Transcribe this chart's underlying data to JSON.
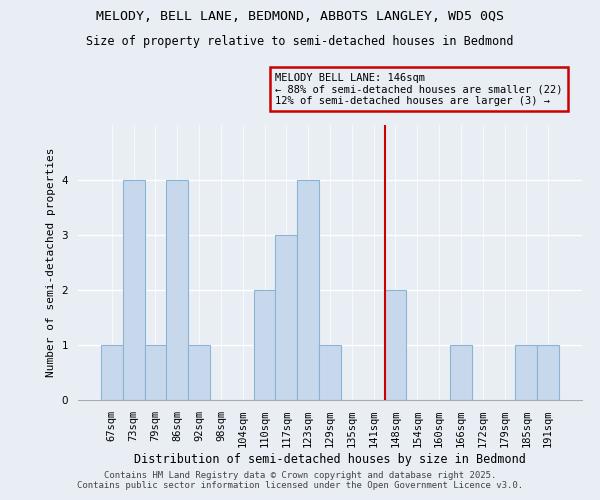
{
  "title1": "MELODY, BELL LANE, BEDMOND, ABBOTS LANGLEY, WD5 0QS",
  "title2": "Size of property relative to semi-detached houses in Bedmond",
  "xlabel": "Distribution of semi-detached houses by size in Bedmond",
  "ylabel": "Number of semi-detached properties",
  "categories": [
    "67sqm",
    "73sqm",
    "79sqm",
    "86sqm",
    "92sqm",
    "98sqm",
    "104sqm",
    "110sqm",
    "117sqm",
    "123sqm",
    "129sqm",
    "135sqm",
    "141sqm",
    "148sqm",
    "154sqm",
    "160sqm",
    "166sqm",
    "172sqm",
    "179sqm",
    "185sqm",
    "191sqm"
  ],
  "values": [
    1,
    4,
    1,
    4,
    1,
    0,
    0,
    2,
    3,
    4,
    1,
    0,
    0,
    2,
    0,
    0,
    1,
    0,
    0,
    1,
    1
  ],
  "bar_color": "#c8d8ec",
  "bar_edge_color": "#8ab4d4",
  "vline_x": 13.0,
  "vline_color": "#cc0000",
  "annotation_line1": "MELODY BELL LANE: 146sqm",
  "annotation_line2": "← 88% of semi-detached houses are smaller (22)",
  "annotation_line3": "12% of semi-detached houses are larger (3) →",
  "annotation_box_color": "#cc0000",
  "background_color": "#e8eef4",
  "ylim": [
    0,
    5
  ],
  "yticks": [
    0,
    1,
    2,
    3,
    4
  ],
  "footer_line1": "Contains HM Land Registry data © Crown copyright and database right 2025.",
  "footer_line2": "Contains public sector information licensed under the Open Government Licence v3.0.",
  "title1_fontsize": 9.5,
  "title2_fontsize": 8.5,
  "xlabel_fontsize": 8.5,
  "ylabel_fontsize": 8,
  "tick_fontsize": 7.5,
  "ann_fontsize": 7.5,
  "footer_fontsize": 6.5
}
